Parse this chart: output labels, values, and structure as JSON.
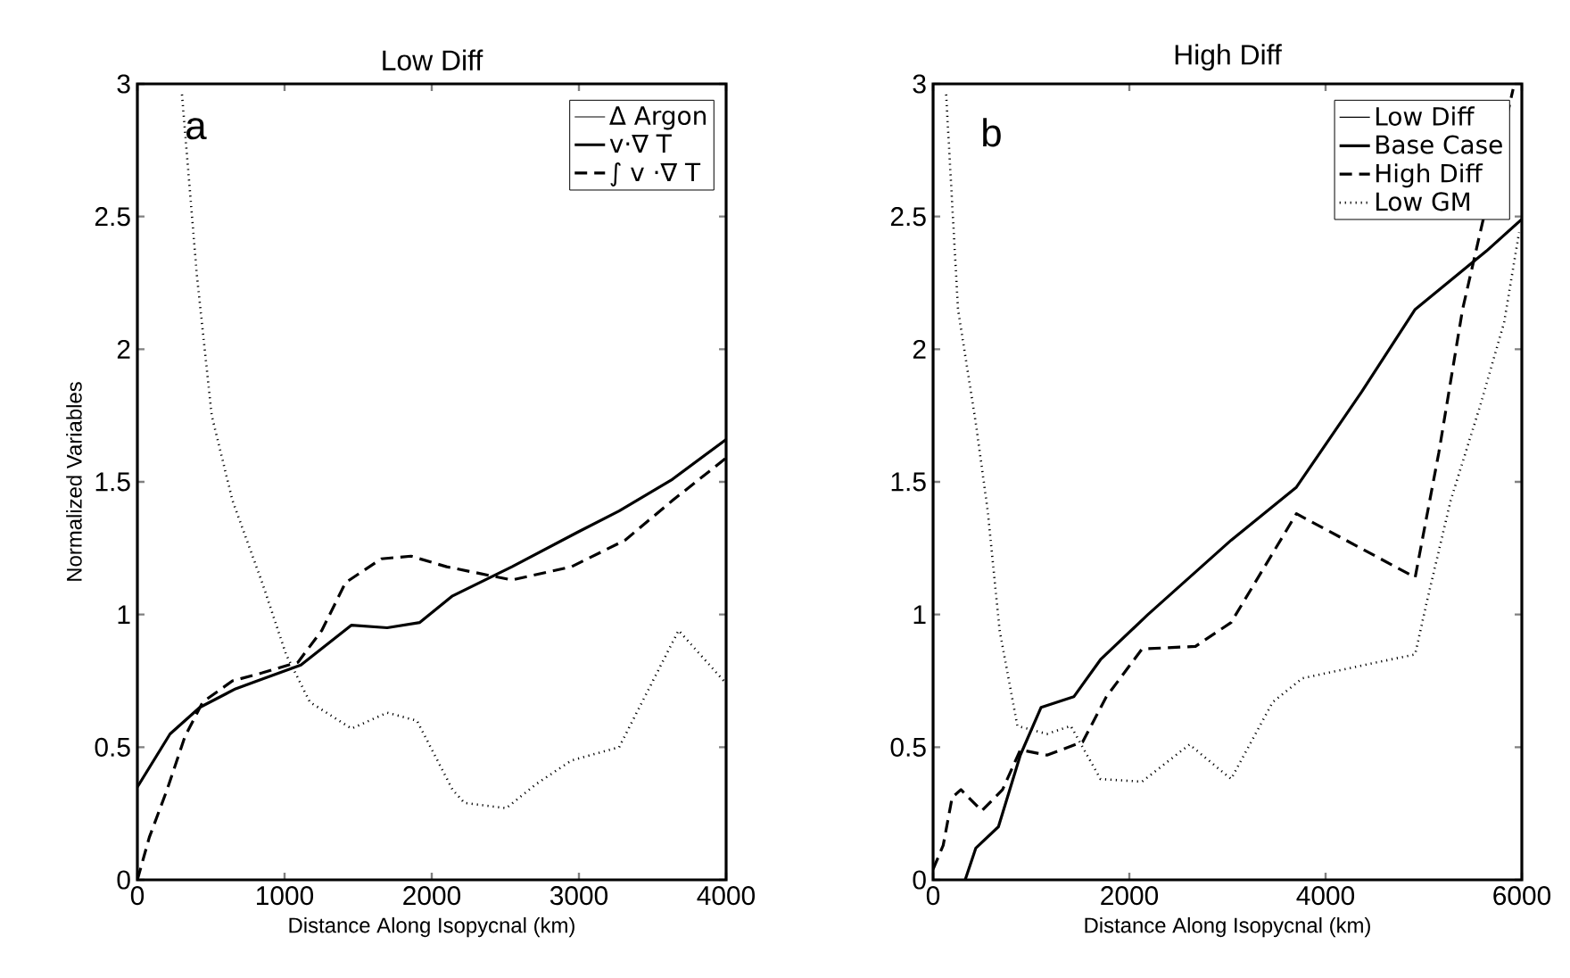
{
  "chart_data": [
    {
      "type": "line",
      "title": "Low Diff",
      "xlabel": "Distance Along Isopycnal (km)",
      "ylabel": "Normalized Variables",
      "annotations": [
        "a"
      ],
      "xlim": [
        0,
        4000
      ],
      "ylim": [
        0,
        3
      ],
      "xticks": [
        0,
        1000,
        2000,
        3000,
        4000
      ],
      "yticks": [
        0,
        0.5,
        1,
        1.5,
        2,
        2.5,
        3
      ],
      "legend": "top right",
      "grid": false,
      "marker": "none",
      "series": [
        {
          "name": "Δ Argon",
          "color": "#000000",
          "line_style": "solid"
        },
        {
          "name": "v·∇ T",
          "color": "#000000",
          "line_style": "solid",
          "x": [
            0,
            222,
            424,
            667,
            1111,
            1455,
            1697,
            1919,
            2141,
            2545,
            2990,
            3273,
            3636,
            4000
          ],
          "values": [
            0.35,
            0.55,
            0.65,
            0.72,
            0.81,
            0.96,
            0.95,
            0.97,
            1.07,
            1.18,
            1.31,
            1.39,
            1.51,
            1.66
          ]
        },
        {
          "name": "∫ v ·∇ T",
          "color": "#000000",
          "line_style": "dashed",
          "x": [
            0,
            81,
            202,
            323,
            444,
            646,
            848,
            1091,
            1253,
            1414,
            1657,
            1859,
            2101,
            2545,
            2949,
            3313,
            3636,
            4000
          ],
          "values": [
            0.0,
            0.16,
            0.34,
            0.54,
            0.67,
            0.75,
            0.78,
            0.82,
            0.94,
            1.12,
            1.21,
            1.22,
            1.18,
            1.13,
            1.18,
            1.28,
            1.43,
            1.59
          ]
        },
        {
          "color": "#000000",
          "line_style": "dotted",
          "x": [
            303,
            404,
            505,
            646,
            848,
            1010,
            1172,
            1455,
            1697,
            1899,
            2141,
            2222,
            2505,
            2707,
            2949,
            3273,
            3677,
            4000
          ],
          "values": [
            2.96,
            2.28,
            1.75,
            1.43,
            1.12,
            0.85,
            0.67,
            0.57,
            0.63,
            0.6,
            0.34,
            0.29,
            0.27,
            0.36,
            0.45,
            0.5,
            0.94,
            0.74
          ]
        }
      ]
    },
    {
      "type": "line",
      "title": "High Diff",
      "xlabel": "Distance Along Isopycnal (km)",
      "annotations": [
        "b"
      ],
      "xlim": [
        0,
        6000
      ],
      "ylim": [
        0,
        3
      ],
      "xticks": [
        0,
        2000,
        4000,
        6000
      ],
      "yticks": [
        0,
        0.5,
        1,
        1.5,
        2,
        2.5,
        3
      ],
      "legend": "top right",
      "grid": false,
      "marker": "none",
      "series": [
        {
          "name": "Low Diff",
          "color": "#000000",
          "line_style": "solid"
        },
        {
          "name": "Base Case",
          "color": "#000000",
          "line_style": "solid",
          "x": [
            327,
            436,
            666,
            889,
            1101,
            1434,
            1706,
            2190,
            3037,
            3703,
            4369,
            4913,
            5639,
            6000
          ],
          "values": [
            0,
            0.12,
            0.2,
            0.47,
            0.65,
            0.69,
            0.83,
            1.0,
            1.28,
            1.48,
            1.84,
            2.15,
            2.37,
            2.49
          ]
        },
        {
          "name": "High Diff",
          "color": "#000000",
          "line_style": "dashed",
          "x": [
            0,
            103,
            194,
            284,
            496,
            708,
            889,
            1161,
            1524,
            1766,
            2129,
            2674,
            3037,
            3703,
            4308,
            4913,
            5154,
            5396,
            5911
          ],
          "values": [
            0.04,
            0.13,
            0.31,
            0.34,
            0.26,
            0.34,
            0.49,
            0.47,
            0.52,
            0.69,
            0.87,
            0.88,
            0.97,
            1.38,
            1.26,
            1.14,
            1.61,
            2.15,
            2.98
          ]
        },
        {
          "name": "Low GM",
          "color": "#000000",
          "line_style": "dotted",
          "x": [
            133,
            254,
            436,
            557,
            678,
            859,
            1161,
            1403,
            1706,
            2129,
            2613,
            3037,
            3461,
            3763,
            4913,
            5033,
            5275,
            5578,
            5819,
            5972
          ],
          "values": [
            2.96,
            2.15,
            1.72,
            1.39,
            0.94,
            0.58,
            0.55,
            0.58,
            0.38,
            0.37,
            0.51,
            0.38,
            0.67,
            0.76,
            0.85,
            1.05,
            1.43,
            1.79,
            2.1,
            2.44
          ]
        }
      ]
    }
  ]
}
